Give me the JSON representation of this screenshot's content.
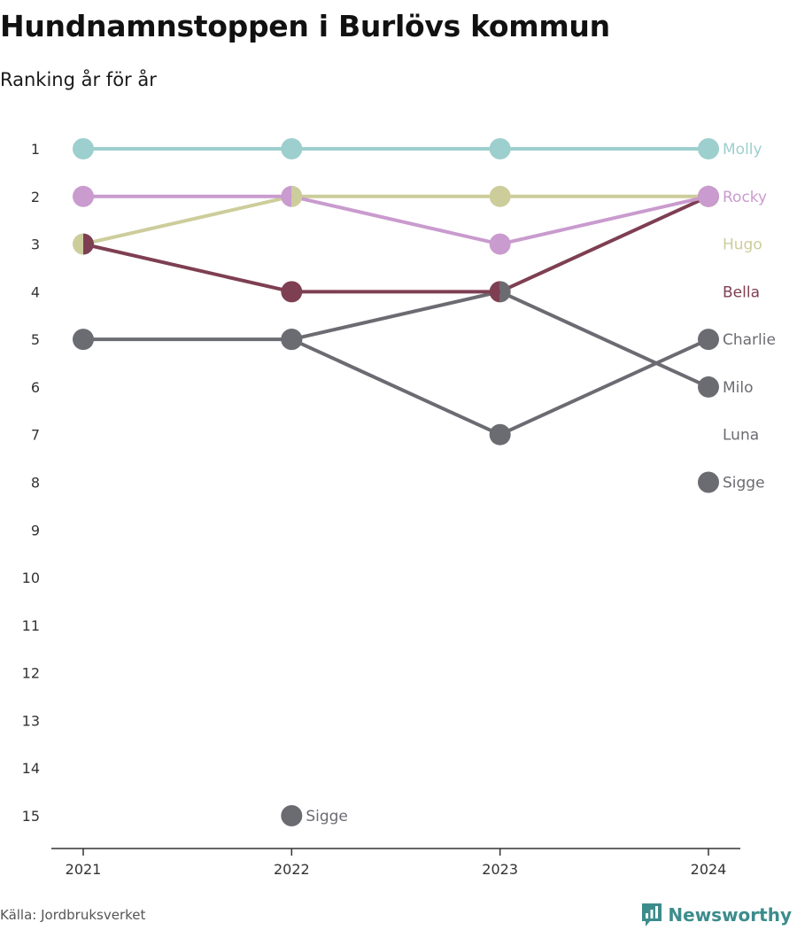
{
  "title": "Hundnamnstoppen i Burlövs kommun",
  "subtitle": "Ranking år för år",
  "source": "Källa: Jordbruksverket",
  "brand": {
    "name": "Newsworthy",
    "icon": "bar-chart-logo-icon",
    "color": "#3d8c8c"
  },
  "chart_data": {
    "type": "line",
    "x": [
      "2021",
      "2022",
      "2023",
      "2024"
    ],
    "y_ticks": [
      1,
      2,
      3,
      4,
      5,
      6,
      7,
      8,
      9,
      10,
      11,
      12,
      13,
      14,
      15
    ],
    "ylim": [
      1,
      15
    ],
    "y_inverted": true,
    "grid": false,
    "xlabel": "",
    "ylabel": "",
    "series": [
      {
        "name": "Molly",
        "color": "#9ccfcd",
        "ranks": [
          1,
          1,
          1,
          1
        ]
      },
      {
        "name": "Rocky",
        "color": "#c99bce",
        "ranks": [
          2,
          2,
          3,
          2
        ]
      },
      {
        "name": "Hugo",
        "color": "#cdcd9c",
        "ranks": [
          3,
          2,
          2,
          2
        ]
      },
      {
        "name": "Bella",
        "color": "#7e3f52",
        "ranks": [
          3,
          4,
          4,
          2
        ]
      },
      {
        "name": "Charlie",
        "color": "#6b6b72",
        "ranks": [
          5,
          5,
          7,
          5
        ]
      },
      {
        "name": "Milo",
        "color": "#6b6b72",
        "ranks": [
          null,
          5,
          4,
          6
        ]
      },
      {
        "name": "Luna",
        "color": "#6b6b72",
        "ranks": [
          null,
          null,
          null,
          null
        ]
      },
      {
        "name": "Sigge",
        "color": "#6b6b72",
        "ranks": [
          null,
          15,
          null,
          8
        ]
      }
    ],
    "end_labels": [
      {
        "name": "Molly",
        "rank": 1,
        "color": "#9ccfcd"
      },
      {
        "name": "Rocky",
        "rank": 2,
        "color": "#c99bce"
      },
      {
        "name": "Hugo",
        "rank": 3,
        "color": "#cdcd9c"
      },
      {
        "name": "Bella",
        "rank": 4,
        "color": "#7e3f52"
      },
      {
        "name": "Charlie",
        "rank": 5,
        "color": "#6b6b72"
      },
      {
        "name": "Milo",
        "rank": 6,
        "color": "#6b6b72"
      },
      {
        "name": "Luna",
        "rank": 7,
        "color": "#6b6b72"
      },
      {
        "name": "Sigge",
        "rank": 8,
        "color": "#6b6b72"
      }
    ],
    "point_labels": [
      {
        "name": "Sigge",
        "year": "2022",
        "rank": 15,
        "color": "#6b6b72"
      }
    ],
    "split_markers": [
      {
        "year": "2021",
        "rank": 3,
        "left": "#cdcd9c",
        "right": "#7e3f52"
      },
      {
        "year": "2022",
        "rank": 2,
        "left": "#c99bce",
        "right": "#cdcd9c"
      },
      {
        "year": "2023",
        "rank": 4,
        "left": "#7e3f52",
        "right": "#6b6b72"
      }
    ]
  }
}
